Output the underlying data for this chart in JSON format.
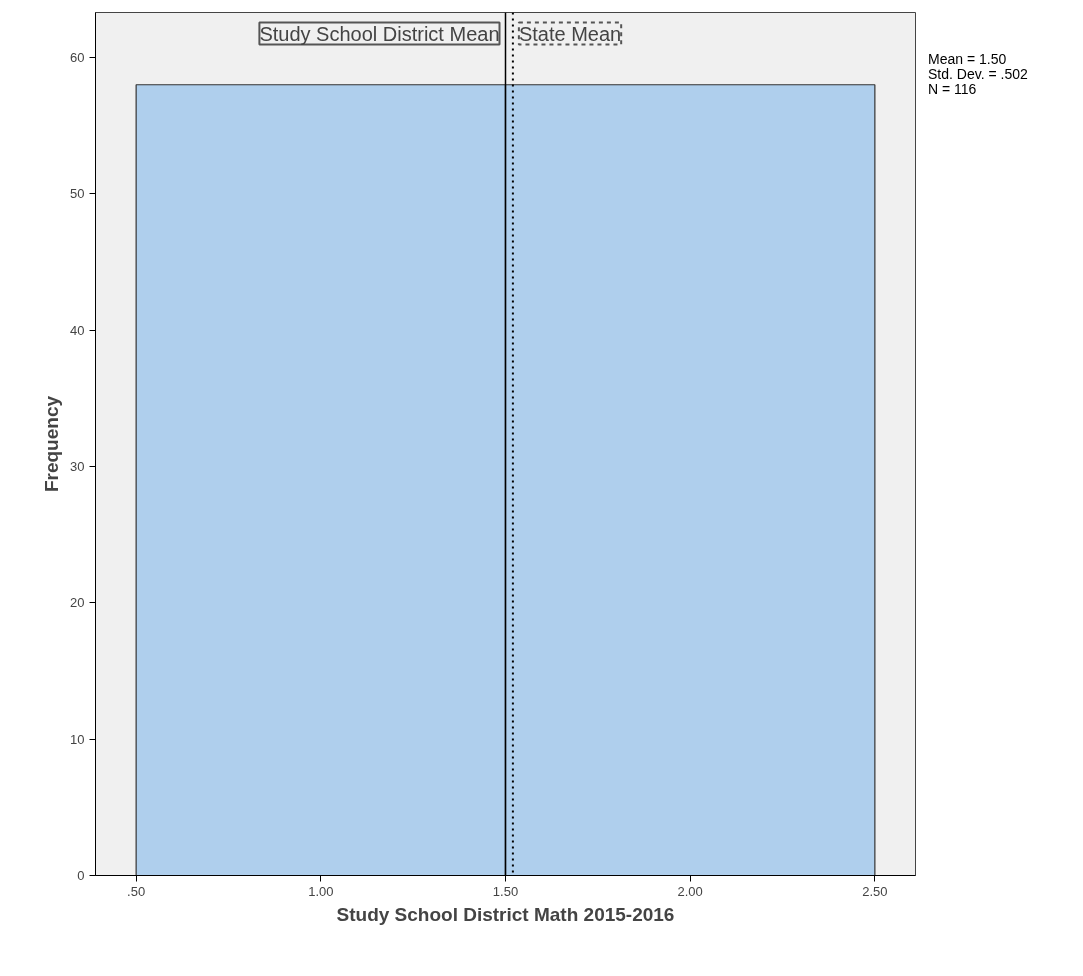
{
  "chart_data": {
    "type": "histogram",
    "xlabel": "Study School District Math 2015-2016",
    "ylabel": "Frequency",
    "bins": [
      0.5,
      1.5,
      2.5
    ],
    "values": [
      58,
      58
    ],
    "color": "#afcfed",
    "xlim": [
      0.39,
      2.61
    ],
    "ylim": [
      0,
      63.3
    ],
    "xticks": [
      {
        "value": 0.5,
        "label": ".50"
      },
      {
        "value": 1.0,
        "label": "1.00"
      },
      {
        "value": 1.5,
        "label": "1.50"
      },
      {
        "value": 2.0,
        "label": "2.00"
      },
      {
        "value": 2.5,
        "label": "2.50"
      }
    ],
    "yticks": [
      0,
      10,
      20,
      30,
      40,
      50,
      60
    ],
    "ref_lines": [
      {
        "axis": "x",
        "value": 1.5,
        "label": "Study School District Mean",
        "line_style": "solid",
        "color": "#000000"
      },
      {
        "axis": "x",
        "value": 1.52,
        "label": "State Mean",
        "line_style": "dotted",
        "color": "#000000"
      }
    ],
    "annotations": [
      "Mean = 1.50",
      "Std. Dev. = .502",
      "N = 116"
    ],
    "grid": false
  }
}
